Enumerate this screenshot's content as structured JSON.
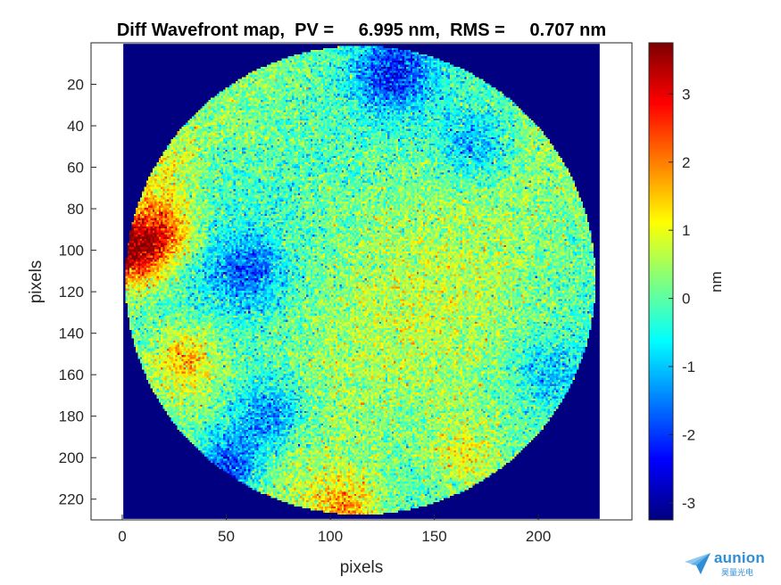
{
  "chart_data": {
    "type": "heatmap",
    "title": "Diff Wavefront map,  PV =     6.995 nm,  RMS =     0.707 nm",
    "xlabel": "pixels",
    "ylabel": "pixels",
    "colorbar_label": "nm",
    "xlim": [
      -15,
      245
    ],
    "ylim": [
      230,
      0
    ],
    "grid_size": [
      229,
      229
    ],
    "x_ticks": [
      "0",
      "50",
      "100",
      "150",
      "200"
    ],
    "y_ticks": [
      "20",
      "40",
      "60",
      "80",
      "100",
      "120",
      "140",
      "160",
      "180",
      "200",
      "220"
    ],
    "colorbar_range": [
      -3.25,
      3.75
    ],
    "colorbar_ticks": [
      "-3",
      "-2",
      "-1",
      "0",
      "1",
      "2",
      "3"
    ],
    "colormap": "jet",
    "background_value": -3.25,
    "pv_nm": 6.995,
    "rms_nm": 0.707,
    "aperture": {
      "shape": "circle",
      "center": [
        114.5,
        114.5
      ],
      "radius": 113
    },
    "features": [
      {
        "x": 3,
        "y": 102,
        "value": 3.2
      },
      {
        "x": 18,
        "y": 90,
        "value": 2.5
      },
      {
        "x": 30,
        "y": 153,
        "value": 1.8
      },
      {
        "x": 108,
        "y": 225,
        "value": 1.9
      },
      {
        "x": 165,
        "y": 200,
        "value": 1.3
      },
      {
        "x": 50,
        "y": 205,
        "value": -2.3
      },
      {
        "x": 70,
        "y": 180,
        "value": -1.6
      },
      {
        "x": 60,
        "y": 110,
        "value": -1.2
      },
      {
        "x": 130,
        "y": 15,
        "value": -1.8
      },
      {
        "x": 170,
        "y": 50,
        "value": -1.0
      },
      {
        "x": 20,
        "y": 60,
        "value": 1.0
      },
      {
        "x": 205,
        "y": 160,
        "value": -0.8
      }
    ]
  },
  "colors": {
    "background": "#00008f",
    "axes_edge": "#262626"
  },
  "watermark": {
    "brand": "aunion",
    "sub": "昊量光电"
  }
}
